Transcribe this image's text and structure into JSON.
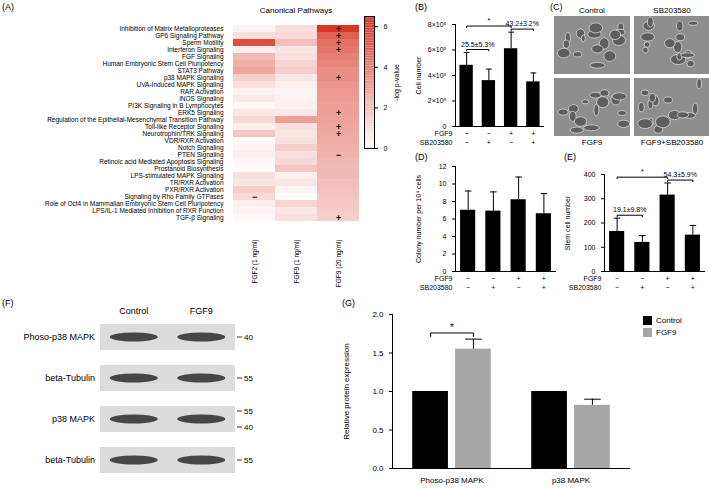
{
  "chart_data": [
    {
      "type": "heatmap",
      "panel_label": "(A)",
      "title": "Canonical Pathways",
      "columns": [
        "FGF2 (1 ng/ml)",
        "FGF9 (1 ng/ml)",
        "FGF9 (20 ng/ml)"
      ],
      "rows": [
        "Inhibition of Matrix Metalloproteases",
        "GP6 Signaling Pathway",
        "Sperm Motility",
        "Interferon Signaling",
        "FGF Signaling",
        "Human Embryonic Stem Cell Pluripotency",
        "STAT3 Pathway",
        "p38 MAPK Signaling",
        "UVA-Induced MAPK Signaling",
        "RAR Activation",
        "iNOS Signaling",
        "PI3K Signaling in B Lymphocytes",
        "ERK5 Signaling",
        "Regulation of the Epithelial-Mesenchymal Transition Pathway",
        "Toll-like Receptor Signaling",
        "Neurotrophin/TRK Signaling",
        "VDR/RXR Activation",
        "Notch Signaling",
        "PTEN Signaling",
        "Retinoic acid Mediated Apoptosis Signaling",
        "Prostanoid Biosynthesis",
        "LPS-stimulated MAPK Signaling",
        "TR/RXR Activation",
        "PXR/RXR Activation",
        "Signaling by Rho Family GTPases",
        "Role of Oct4 in Mammalian Embryonic Stem Cell Pluripotency",
        "LPS/IL-1 Mediated Inhibition of RXR Function",
        "TGF-β Signaling"
      ],
      "values": [
        [
          0.3,
          1.0,
          6.3
        ],
        [
          1.0,
          1.2,
          5.0
        ],
        [
          5.5,
          2.0,
          4.5
        ],
        [
          0.5,
          0.8,
          4.3
        ],
        [
          2.2,
          1.0,
          4.0
        ],
        [
          2.5,
          1.3,
          3.8
        ],
        [
          2.8,
          1.5,
          3.5
        ],
        [
          1.5,
          0.8,
          3.5
        ],
        [
          1.0,
          0.5,
          3.3
        ],
        [
          0.4,
          0.3,
          3.2
        ],
        [
          0.7,
          0.4,
          3.1
        ],
        [
          0.2,
          0.5,
          3.0
        ],
        [
          0.8,
          0.7,
          3.0
        ],
        [
          1.2,
          3.0,
          2.9
        ],
        [
          0.5,
          1.0,
          2.8
        ],
        [
          1.8,
          0.8,
          2.7
        ],
        [
          0.2,
          1.0,
          2.6
        ],
        [
          0.3,
          1.5,
          2.5
        ],
        [
          0.5,
          1.0,
          2.4
        ],
        [
          0.2,
          1.2,
          2.3
        ],
        [
          0.1,
          1.8,
          2.2
        ],
        [
          1.0,
          0.5,
          2.2
        ],
        [
          0.8,
          0.8,
          2.0
        ],
        [
          1.5,
          0.3,
          1.9
        ],
        [
          1.2,
          0.1,
          1.8
        ],
        [
          0.5,
          1.3,
          1.7
        ],
        [
          0.3,
          0.8,
          1.6
        ],
        [
          0.2,
          1.0,
          1.5
        ]
      ],
      "cell_labels": [
        {
          "row": "Inhibition of Matrix Metalloproteases",
          "column": "FGF9 (20 ng/ml)",
          "label": "+"
        },
        {
          "row": "GP6 Signaling Pathway",
          "column": "FGF9 (20 ng/ml)",
          "label": "+"
        },
        {
          "row": "Sperm Motility",
          "column": "FGF9 (20 ng/ml)",
          "label": "+"
        },
        {
          "row": "Interferon Signaling",
          "column": "FGF9 (20 ng/ml)",
          "label": "+"
        },
        {
          "row": "p38 MAPK Signaling",
          "column": "FGF9 (20 ng/ml)",
          "label": "+"
        },
        {
          "row": "ERK5 Signaling",
          "column": "FGF9 (20 ng/ml)",
          "label": "+"
        },
        {
          "row": "Toll-like Receptor Signaling",
          "column": "FGF9 (20 ng/ml)",
          "label": "+"
        },
        {
          "row": "Neurotrophin/TRK Signaling",
          "column": "FGF9 (20 ng/ml)",
          "label": "+"
        },
        {
          "row": "PTEN Signaling",
          "column": "FGF9 (20 ng/ml)",
          "label": "−"
        },
        {
          "row": "Signaling by Rho Family GTPases",
          "column": "FGF2 (1 ng/ml)",
          "label": "−"
        },
        {
          "row": "TGF-β Signaling",
          "column": "FGF9 (20 ng/ml)",
          "label": "+"
        }
      ],
      "colorbar": {
        "range": [
          0,
          6.5
        ],
        "ticks": [
          0,
          2,
          4,
          6
        ],
        "label": "-log p-value",
        "colors": [
          "#ffffff",
          "#d7301f"
        ]
      }
    },
    {
      "type": "bar",
      "panel_label": "(B)",
      "y_label": "Cell number",
      "categories": [
        null,
        null,
        null,
        null
      ],
      "values": [
        480000,
        360000,
        610000,
        350000
      ],
      "errors": [
        100000,
        90000,
        130000,
        70000
      ],
      "color": "#000000",
      "ylim": [
        0,
        800000
      ],
      "yticks": [
        0,
        {
          "value": 200000,
          "label": "2×10⁵"
        },
        {
          "value": 400000,
          "label": "4×10⁵"
        },
        {
          "value": 600000,
          "label": "6×10⁵"
        },
        {
          "value": 800000,
          "label": "8×10⁵"
        }
      ],
      "tick_labels": "y",
      "conditions": [
        {
          "name": "FGF9",
          "signs": [
            "−",
            "−",
            "+",
            "+"
          ]
        },
        {
          "name": "SB203580",
          "signs": [
            "−",
            "+",
            "−",
            "+"
          ]
        }
      ],
      "annotations": [
        {
          "text": "25.5±5.3%",
          "from": 0,
          "to": 1
        },
        {
          "text": "43.2±3.2%",
          "from": 2,
          "to": 3
        },
        {
          "text": "*",
          "from": 0,
          "to": 2
        }
      ]
    },
    {
      "type": "image",
      "panel_label": "(C)",
      "images": [
        "Control",
        "SB203580",
        "FGF9",
        "FGF9+SB203580"
      ]
    },
    {
      "type": "bar",
      "panel_label": "(D)",
      "y_label": "Colony number per 10⁴ cells",
      "categories": [
        null,
        null,
        null,
        null
      ],
      "values": [
        7.0,
        6.9,
        8.2,
        6.6
      ],
      "errors": [
        2.2,
        2.2,
        2.6,
        2.3
      ],
      "color": "#000000",
      "ylim": [
        0,
        12
      ],
      "yticks": [
        0,
        2,
        4,
        6,
        8,
        10,
        12
      ],
      "tick_labels": "y",
      "conditions": [
        {
          "name": "FGF9",
          "signs": [
            "−",
            "−",
            "+",
            "+"
          ]
        },
        {
          "name": "SB203580",
          "signs": [
            "−",
            "+",
            "−",
            "+"
          ]
        }
      ]
    },
    {
      "type": "bar",
      "panel_label": "(E)",
      "y_label": "Stem cell number",
      "categories": [
        null,
        null,
        null,
        null
      ],
      "values": [
        165,
        120,
        315,
        150
      ],
      "errors": [
        55,
        28,
        50,
        40
      ],
      "color": "#000000",
      "ylim": [
        0,
        400
      ],
      "yticks": [
        0,
        100,
        200,
        300,
        400
      ],
      "tick_labels": "y",
      "conditions": [
        {
          "name": "FGF9",
          "signs": [
            "−",
            "−",
            "+",
            "+"
          ]
        },
        {
          "name": "SB203580",
          "signs": [
            "−",
            "+",
            "−",
            "+"
          ]
        }
      ],
      "annotations": [
        {
          "text": "19.1±9.8%",
          "from": 0,
          "to": 1
        },
        {
          "text": "54.3±5.9%",
          "from": 2,
          "to": 3
        },
        {
          "text": "*",
          "from": 0,
          "to": 2
        }
      ]
    },
    {
      "type": "western_blot",
      "panel_label": "(F)",
      "lanes": [
        "Control",
        "FGF9"
      ],
      "rows": [
        {
          "label": "Phoso-p38 MAPK",
          "markers": [
            40
          ]
        },
        {
          "label": "beta-Tubulin",
          "markers": [
            55
          ]
        },
        {
          "label": "p38 MAPK",
          "markers": [
            55,
            40
          ]
        },
        {
          "label": "beta-Tubulin",
          "markers": [
            55
          ]
        }
      ]
    },
    {
      "type": "bar",
      "panel_label": "(G)",
      "y_label": "Relative protein expression",
      "categories": [
        "Phoso-p38 MAPK",
        "p38 MAPK"
      ],
      "series": [
        {
          "name": "Control",
          "color": "#000000",
          "values": [
            1.0,
            1.0
          ]
        },
        {
          "name": "FGF9",
          "color": "#a6a6a6",
          "values": [
            1.55,
            0.82
          ],
          "errors": [
            0.13,
            0.08
          ]
        }
      ],
      "ylim": [
        0,
        2
      ],
      "yticks": [
        {
          "value": 0,
          "label": "0.0"
        },
        0.5,
        {
          "value": 1,
          "label": "1.0"
        },
        1.5,
        {
          "value": 2,
          "label": "2.0"
        }
      ],
      "legend": "top-right",
      "annotations": [
        {
          "text": "*",
          "category": "Phoso-p38 MAPK"
        }
      ]
    }
  ]
}
